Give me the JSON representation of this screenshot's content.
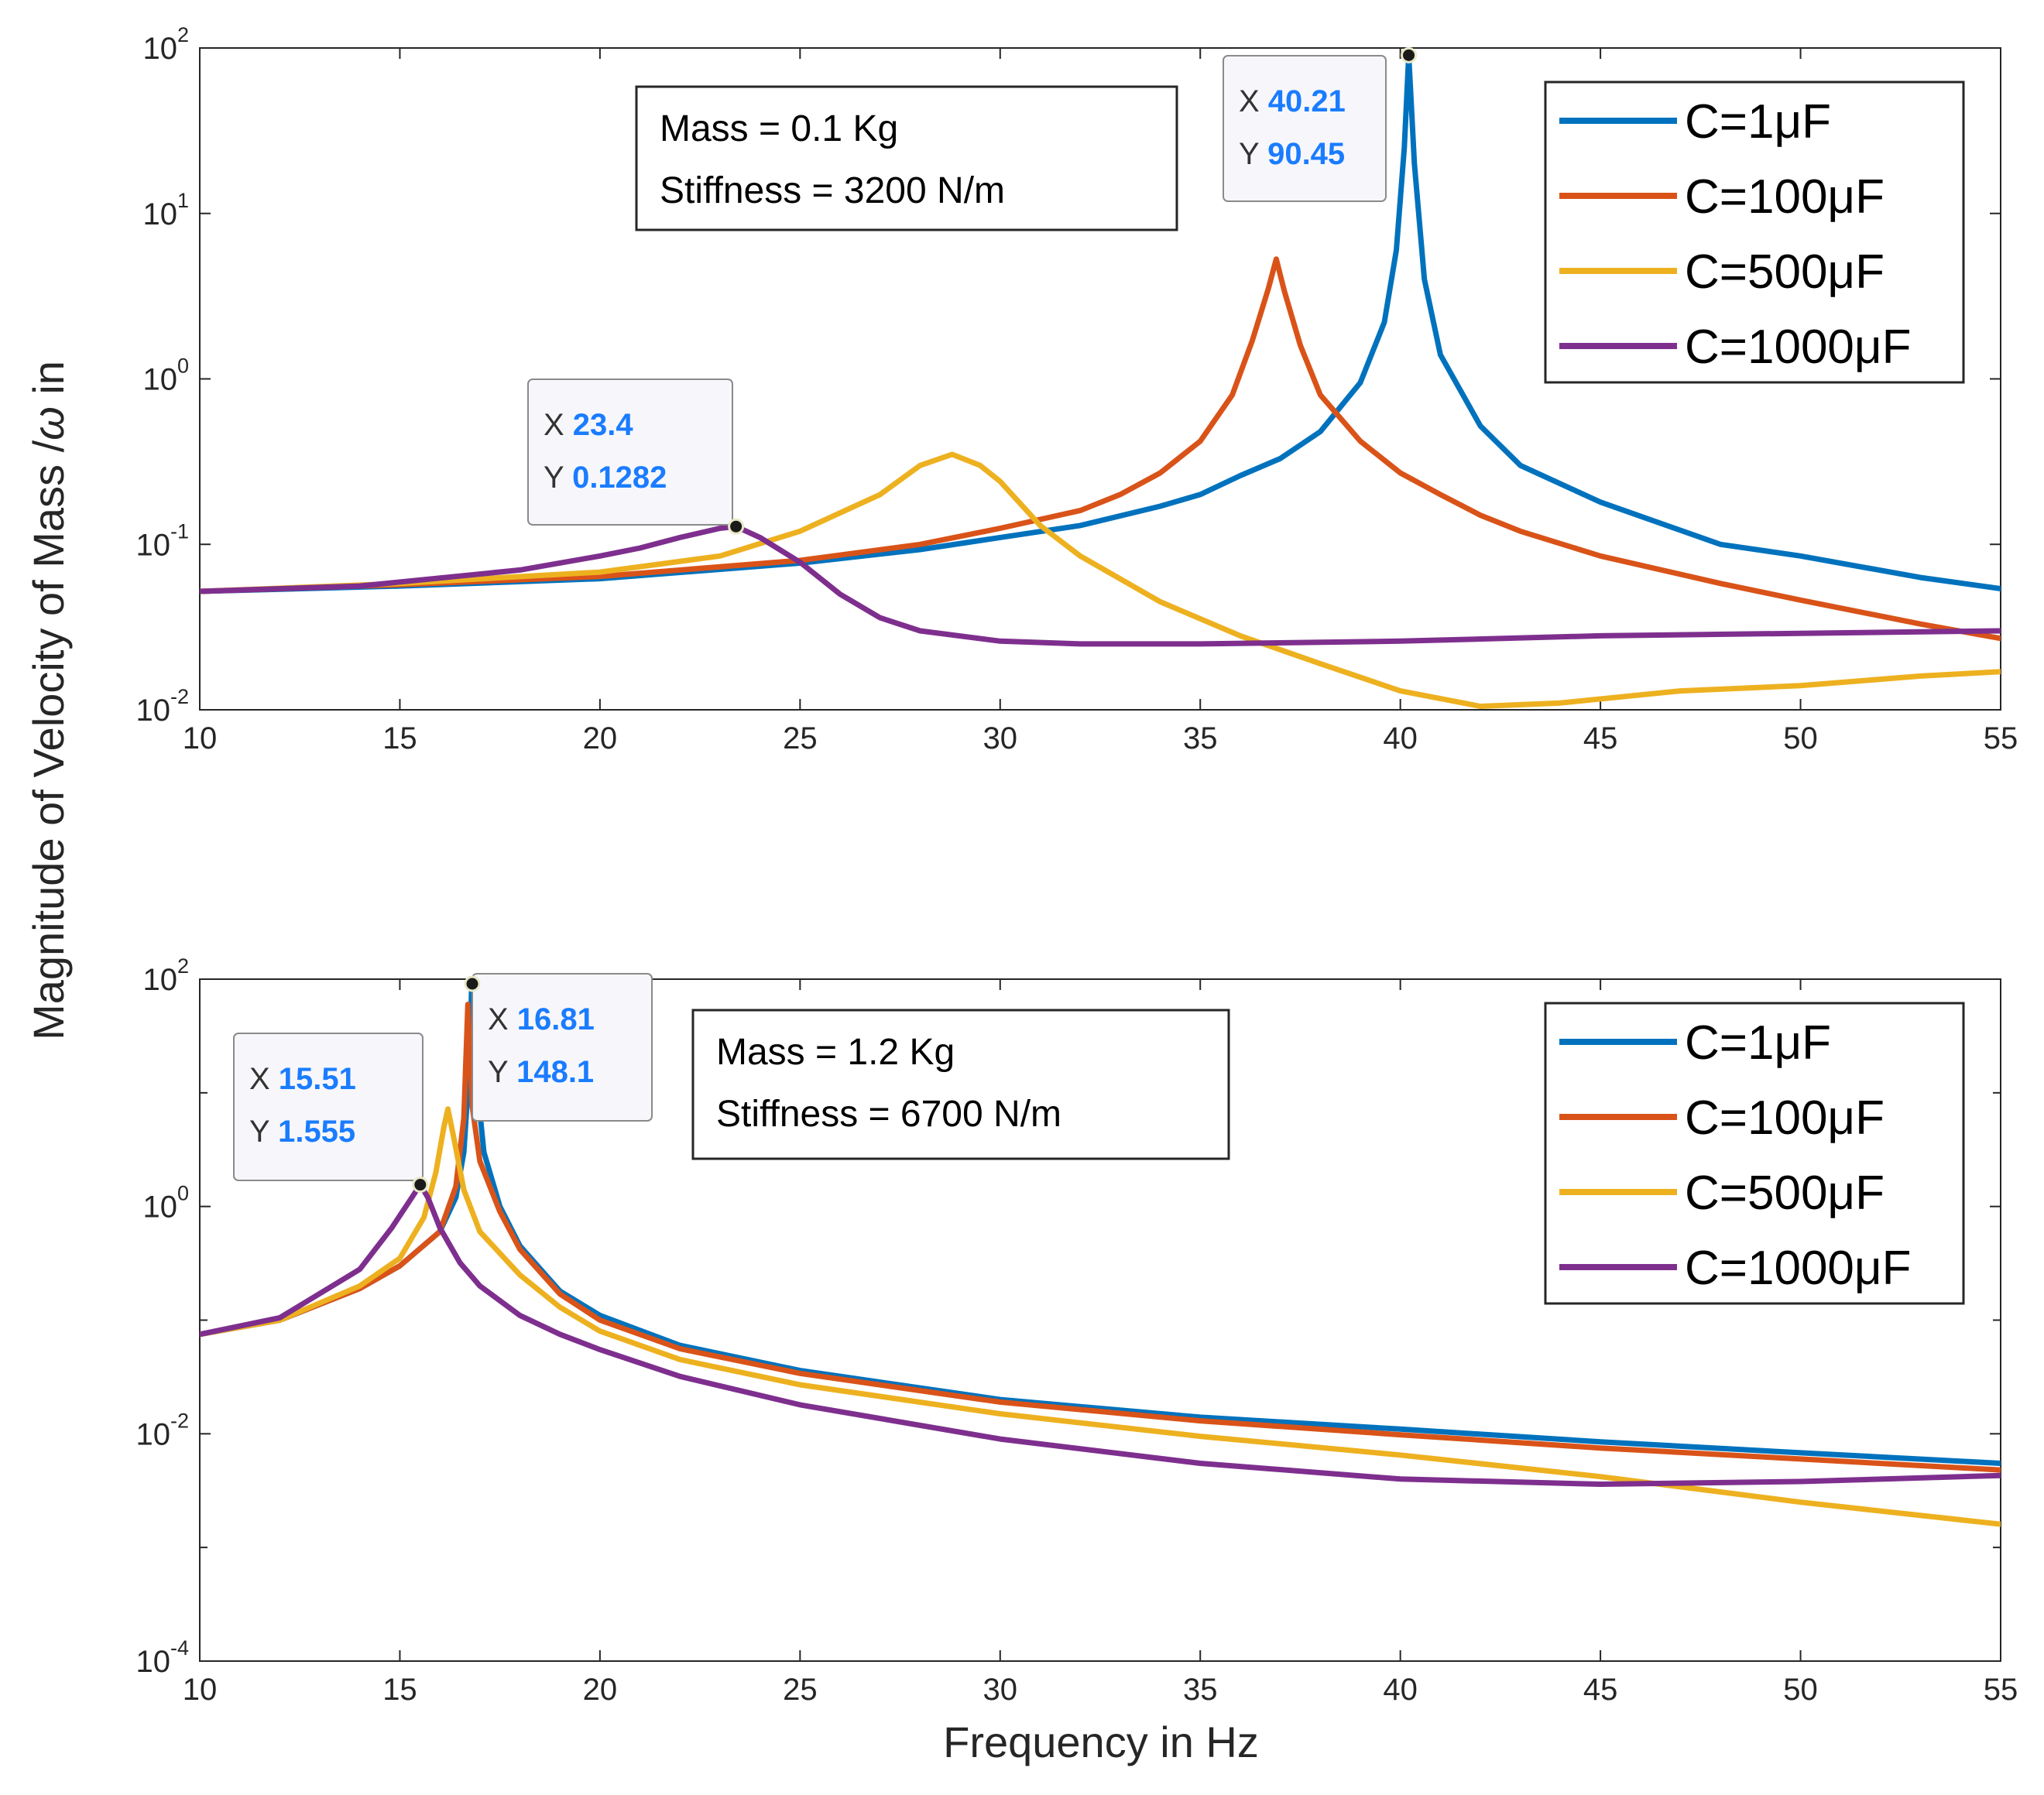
{
  "figure": {
    "ylabel": "Magnitude of Velocity of Mass /ω in",
    "ylabel_plain": "Magnitude of Velocity of Mass /",
    "ylabel_omega": "ω",
    "ylabel_tail": " in",
    "xlabel": "Frequency in Hz"
  },
  "colors": {
    "c1": "#0072BD",
    "c100": "#D95319",
    "c500": "#EDB120",
    "c1000": "#7E2F8E",
    "datatip_value": "#1a7cff"
  },
  "chart_data": [
    {
      "type": "line",
      "panel": "top",
      "xlim": [
        10,
        55
      ],
      "yscale": "log",
      "ylim_exp": [
        -2,
        2
      ],
      "x_ticks": [
        10,
        15,
        20,
        25,
        30,
        35,
        40,
        45,
        50,
        55
      ],
      "y_ticks": [
        {
          "base": "10",
          "exp": "-2"
        },
        {
          "base": "10",
          "exp": "-1"
        },
        {
          "base": "10",
          "exp": "0"
        },
        {
          "base": "10",
          "exp": "1"
        },
        {
          "base": "10",
          "exp": "2"
        }
      ],
      "annotation": [
        "Mass = 0.1 Kg",
        "Stiffness = 3200 N/m"
      ],
      "series": [
        {
          "name": "C=1μF",
          "color_key": "c1",
          "points": [
            [
              10,
              0.052
            ],
            [
              15,
              0.056
            ],
            [
              20,
              0.062
            ],
            [
              25,
              0.077
            ],
            [
              28,
              0.093
            ],
            [
              30,
              0.11
            ],
            [
              32,
              0.13
            ],
            [
              34,
              0.17
            ],
            [
              35,
              0.2
            ],
            [
              36,
              0.26
            ],
            [
              37,
              0.33
            ],
            [
              38,
              0.48
            ],
            [
              39,
              0.95
            ],
            [
              39.6,
              2.2
            ],
            [
              39.9,
              6
            ],
            [
              40.1,
              25
            ],
            [
              40.21,
              90.45
            ],
            [
              40.35,
              20
            ],
            [
              40.6,
              4
            ],
            [
              41,
              1.4
            ],
            [
              42,
              0.52
            ],
            [
              43,
              0.3
            ],
            [
              45,
              0.18
            ],
            [
              48,
              0.1
            ],
            [
              50,
              0.085
            ],
            [
              53,
              0.063
            ],
            [
              55,
              0.054
            ]
          ]
        },
        {
          "name": "C=100μF",
          "color_key": "c100",
          "points": [
            [
              10,
              0.052
            ],
            [
              15,
              0.057
            ],
            [
              20,
              0.064
            ],
            [
              25,
              0.08
            ],
            [
              28,
              0.1
            ],
            [
              30,
              0.125
            ],
            [
              32,
              0.16
            ],
            [
              33,
              0.2
            ],
            [
              34,
              0.27
            ],
            [
              35,
              0.42
            ],
            [
              35.8,
              0.8
            ],
            [
              36.3,
              1.7
            ],
            [
              36.7,
              3.5
            ],
            [
              36.9,
              5.3
            ],
            [
              37.1,
              3.4
            ],
            [
              37.5,
              1.6
            ],
            [
              38,
              0.8
            ],
            [
              39,
              0.42
            ],
            [
              40,
              0.27
            ],
            [
              41,
              0.2
            ],
            [
              42,
              0.15
            ],
            [
              43,
              0.12
            ],
            [
              45,
              0.085
            ],
            [
              48,
              0.058
            ],
            [
              50,
              0.046
            ],
            [
              53,
              0.033
            ],
            [
              55,
              0.027
            ]
          ]
        },
        {
          "name": "C=500μF",
          "color_key": "c500",
          "points": [
            [
              10,
              0.052
            ],
            [
              15,
              0.058
            ],
            [
              20,
              0.068
            ],
            [
              23,
              0.085
            ],
            [
              25,
              0.12
            ],
            [
              27,
              0.2
            ],
            [
              28,
              0.3
            ],
            [
              28.8,
              0.35
            ],
            [
              29.5,
              0.3
            ],
            [
              30,
              0.24
            ],
            [
              31,
              0.13
            ],
            [
              32,
              0.085
            ],
            [
              34,
              0.045
            ],
            [
              36,
              0.028
            ],
            [
              38,
              0.019
            ],
            [
              40,
              0.013
            ],
            [
              42,
              0.0105
            ],
            [
              44,
              0.011
            ],
            [
              47,
              0.013
            ],
            [
              50,
              0.014
            ],
            [
              53,
              0.016
            ],
            [
              55,
              0.017
            ]
          ]
        },
        {
          "name": "C=1000μF",
          "color_key": "c1000",
          "points": [
            [
              10,
              0.052
            ],
            [
              14,
              0.056
            ],
            [
              18,
              0.07
            ],
            [
              20,
              0.085
            ],
            [
              21,
              0.095
            ],
            [
              22,
              0.11
            ],
            [
              23,
              0.125
            ],
            [
              23.4,
              0.1282
            ],
            [
              24,
              0.11
            ],
            [
              25,
              0.078
            ],
            [
              26,
              0.05
            ],
            [
              27,
              0.036
            ],
            [
              28,
              0.03
            ],
            [
              30,
              0.026
            ],
            [
              32,
              0.025
            ],
            [
              35,
              0.025
            ],
            [
              40,
              0.026
            ],
            [
              45,
              0.028
            ],
            [
              50,
              0.029
            ],
            [
              55,
              0.03
            ]
          ]
        }
      ],
      "datatips": [
        {
          "x_key": "X",
          "x_val": "40.21",
          "y_key": "Y",
          "y_val": "90.45",
          "x": 40.21,
          "y": 90.45
        },
        {
          "x_key": "X",
          "x_val": "23.4",
          "y_key": "Y",
          "y_val": "0.1282",
          "x": 23.4,
          "y": 0.1282
        }
      ]
    },
    {
      "type": "line",
      "panel": "bottom",
      "xlim": [
        10,
        55
      ],
      "yscale": "log",
      "ylim_exp": [
        -4,
        2
      ],
      "x_ticks": [
        10,
        15,
        20,
        25,
        30,
        35,
        40,
        45,
        50,
        55
      ],
      "y_ticks": [
        {
          "base": "10",
          "exp": "-4"
        },
        {
          "base": "10",
          "exp": "-2"
        },
        {
          "base": "10",
          "exp": "0"
        },
        {
          "base": "10",
          "exp": "2"
        }
      ],
      "annotation": [
        "Mass = 1.2 Kg",
        "Stiffness = 6700 N/m"
      ],
      "series": [
        {
          "name": "C=1μF",
          "color_key": "c1",
          "points": [
            [
              10,
              0.075
            ],
            [
              12,
              0.1
            ],
            [
              14,
              0.19
            ],
            [
              15,
              0.3
            ],
            [
              16,
              0.6
            ],
            [
              16.4,
              1.2
            ],
            [
              16.6,
              3
            ],
            [
              16.75,
              20
            ],
            [
              16.81,
              148.1
            ],
            [
              16.9,
              15
            ],
            [
              17.1,
              3
            ],
            [
              17.5,
              1
            ],
            [
              18,
              0.45
            ],
            [
              19,
              0.18
            ],
            [
              20,
              0.11
            ],
            [
              22,
              0.06
            ],
            [
              25,
              0.036
            ],
            [
              30,
              0.02
            ],
            [
              35,
              0.014
            ],
            [
              40,
              0.011
            ],
            [
              45,
              0.0085
            ],
            [
              50,
              0.0068
            ],
            [
              55,
              0.0055
            ]
          ]
        },
        {
          "name": "C=100μF",
          "color_key": "c100",
          "points": [
            [
              10,
              0.075
            ],
            [
              12,
              0.1
            ],
            [
              14,
              0.19
            ],
            [
              15,
              0.3
            ],
            [
              16,
              0.6
            ],
            [
              16.4,
              1.5
            ],
            [
              16.6,
              6
            ],
            [
              16.7,
              60
            ],
            [
              16.8,
              8
            ],
            [
              17,
              2.5
            ],
            [
              17.5,
              0.9
            ],
            [
              18,
              0.42
            ],
            [
              19,
              0.17
            ],
            [
              20,
              0.1
            ],
            [
              22,
              0.056
            ],
            [
              25,
              0.034
            ],
            [
              30,
              0.019
            ],
            [
              35,
              0.013
            ],
            [
              40,
              0.0098
            ],
            [
              45,
              0.0075
            ],
            [
              50,
              0.006
            ],
            [
              55,
              0.0048
            ]
          ]
        },
        {
          "name": "C=500μF",
          "color_key": "c500",
          "points": [
            [
              10,
              0.075
            ],
            [
              12,
              0.1
            ],
            [
              14,
              0.2
            ],
            [
              15,
              0.35
            ],
            [
              15.6,
              0.8
            ],
            [
              15.9,
              2
            ],
            [
              16.1,
              5
            ],
            [
              16.2,
              7.2
            ],
            [
              16.35,
              4
            ],
            [
              16.6,
              1.4
            ],
            [
              17,
              0.6
            ],
            [
              18,
              0.25
            ],
            [
              19,
              0.13
            ],
            [
              20,
              0.08
            ],
            [
              22,
              0.045
            ],
            [
              25,
              0.027
            ],
            [
              30,
              0.015
            ],
            [
              35,
              0.0095
            ],
            [
              40,
              0.0065
            ],
            [
              45,
              0.0042
            ],
            [
              50,
              0.0025
            ],
            [
              55,
              0.0016
            ]
          ]
        },
        {
          "name": "C=1000μF",
          "color_key": "c1000",
          "points": [
            [
              10,
              0.075
            ],
            [
              12,
              0.105
            ],
            [
              14,
              0.28
            ],
            [
              14.8,
              0.65
            ],
            [
              15.3,
              1.2
            ],
            [
              15.51,
              1.555
            ],
            [
              15.7,
              1.2
            ],
            [
              16,
              0.65
            ],
            [
              16.5,
              0.32
            ],
            [
              17,
              0.2
            ],
            [
              18,
              0.11
            ],
            [
              19,
              0.075
            ],
            [
              20,
              0.055
            ],
            [
              22,
              0.032
            ],
            [
              25,
              0.018
            ],
            [
              30,
              0.009
            ],
            [
              35,
              0.0055
            ],
            [
              40,
              0.004
            ],
            [
              45,
              0.0036
            ],
            [
              50,
              0.0038
            ],
            [
              55,
              0.0043
            ]
          ]
        }
      ],
      "datatips": [
        {
          "x_key": "X",
          "x_val": "16.81",
          "y_key": "Y",
          "y_val": "148.1",
          "x": 16.81,
          "y": 148.1
        },
        {
          "x_key": "X",
          "x_val": "15.51",
          "y_key": "Y",
          "y_val": "1.555",
          "x": 15.51,
          "y": 1.555
        }
      ]
    }
  ]
}
